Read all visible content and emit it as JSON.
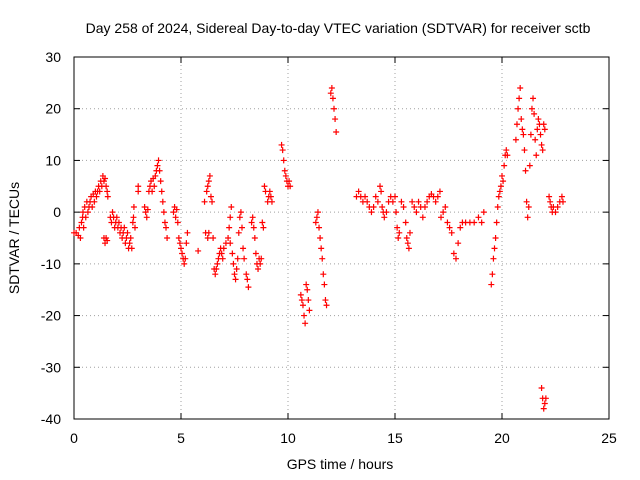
{
  "chart_data": {
    "type": "scatter",
    "title": "Day 258 of 2024, Sidereal Day-to-day VTEC variation (SDTVAR) for receiver sctb",
    "xlabel": "GPS time / hours",
    "ylabel": "SDTVAR / TECUs",
    "xlim": [
      0,
      25
    ],
    "ylim": [
      -40,
      30
    ],
    "xticks": [
      0,
      5,
      10,
      15,
      20,
      25
    ],
    "yticks": [
      30,
      20,
      10,
      0,
      -10,
      -20,
      -30,
      -40
    ],
    "xtick_labels": [
      "0",
      "5",
      "10",
      "15",
      "20",
      "25"
    ],
    "ytick_labels": [
      "30",
      "20",
      "10",
      "0",
      "-10",
      "-20",
      "-30",
      "-40"
    ],
    "grid": true,
    "marker": "+",
    "marker_color": "#ff0000",
    "series": [
      {
        "name": "SDTVAR",
        "points": [
          [
            0.0,
            -4
          ],
          [
            0.1,
            -4
          ],
          [
            0.2,
            -4.5
          ],
          [
            0.25,
            -3
          ],
          [
            0.3,
            -5
          ],
          [
            0.35,
            -2
          ],
          [
            0.4,
            -1
          ],
          [
            0.42,
            0
          ],
          [
            0.45,
            -3
          ],
          [
            0.5,
            1
          ],
          [
            0.55,
            -1
          ],
          [
            0.6,
            2
          ],
          [
            0.65,
            0
          ],
          [
            0.7,
            1
          ],
          [
            0.75,
            2
          ],
          [
            0.8,
            3
          ],
          [
            0.85,
            1
          ],
          [
            0.9,
            3.5
          ],
          [
            0.95,
            2
          ],
          [
            1.0,
            4
          ],
          [
            1.05,
            3
          ],
          [
            1.1,
            4
          ],
          [
            1.15,
            5
          ],
          [
            1.2,
            4
          ],
          [
            1.25,
            6
          ],
          [
            1.3,
            5
          ],
          [
            1.35,
            7
          ],
          [
            1.4,
            6
          ],
          [
            1.45,
            6.5
          ],
          [
            1.5,
            5
          ],
          [
            1.55,
            4
          ],
          [
            1.58,
            3
          ],
          [
            1.4,
            -5
          ],
          [
            1.45,
            -6
          ],
          [
            1.5,
            -5
          ],
          [
            1.55,
            -5.5
          ],
          [
            1.7,
            -1
          ],
          [
            1.75,
            -2
          ],
          [
            1.8,
            0
          ],
          [
            1.85,
            -1
          ],
          [
            1.9,
            -3
          ],
          [
            1.95,
            -2
          ],
          [
            2.0,
            -1
          ],
          [
            2.05,
            -3
          ],
          [
            2.1,
            -2
          ],
          [
            2.15,
            -4
          ],
          [
            2.2,
            -3
          ],
          [
            2.25,
            -5
          ],
          [
            2.3,
            -4
          ],
          [
            2.35,
            -3
          ],
          [
            2.4,
            -6
          ],
          [
            2.45,
            -5
          ],
          [
            2.5,
            -4
          ],
          [
            2.55,
            -7
          ],
          [
            2.6,
            -6
          ],
          [
            2.65,
            -5
          ],
          [
            2.7,
            -7
          ],
          [
            2.75,
            -2
          ],
          [
            2.78,
            -1
          ],
          [
            2.8,
            1
          ],
          [
            2.85,
            -3
          ],
          [
            3.0,
            4
          ],
          [
            3.0,
            5
          ],
          [
            3.3,
            1
          ],
          [
            3.35,
            0
          ],
          [
            3.4,
            -1
          ],
          [
            3.45,
            0.5
          ],
          [
            3.5,
            4
          ],
          [
            3.55,
            5
          ],
          [
            3.6,
            6
          ],
          [
            3.65,
            4
          ],
          [
            3.7,
            6.5
          ],
          [
            3.75,
            5
          ],
          [
            3.8,
            7
          ],
          [
            3.85,
            8
          ],
          [
            3.9,
            9
          ],
          [
            3.95,
            10
          ],
          [
            4.0,
            8
          ],
          [
            4.05,
            6
          ],
          [
            4.1,
            4
          ],
          [
            4.15,
            2
          ],
          [
            4.2,
            0
          ],
          [
            4.25,
            -2
          ],
          [
            4.3,
            -3
          ],
          [
            4.35,
            -5
          ],
          [
            4.65,
            0
          ],
          [
            4.7,
            1
          ],
          [
            4.75,
            -1
          ],
          [
            4.8,
            0.5
          ],
          [
            4.85,
            -2
          ],
          [
            4.9,
            -5
          ],
          [
            4.95,
            -6
          ],
          [
            5.0,
            -7
          ],
          [
            5.05,
            -8
          ],
          [
            5.1,
            -9
          ],
          [
            5.15,
            -10
          ],
          [
            5.2,
            -9
          ],
          [
            5.25,
            -6
          ],
          [
            5.3,
            -4
          ],
          [
            5.8,
            -7.5
          ],
          [
            6.1,
            2
          ],
          [
            6.2,
            4
          ],
          [
            6.25,
            5
          ],
          [
            6.3,
            6
          ],
          [
            6.35,
            7
          ],
          [
            6.4,
            3
          ],
          [
            6.45,
            2
          ],
          [
            6.15,
            -4
          ],
          [
            6.25,
            -5
          ],
          [
            6.3,
            -4
          ],
          [
            6.5,
            -5
          ],
          [
            6.55,
            -11
          ],
          [
            6.6,
            -12
          ],
          [
            6.65,
            -11
          ],
          [
            6.7,
            -10
          ],
          [
            6.75,
            -9
          ],
          [
            6.8,
            -8
          ],
          [
            6.85,
            -7
          ],
          [
            6.9,
            -8
          ],
          [
            6.95,
            -9
          ],
          [
            7.0,
            -7
          ],
          [
            7.1,
            -6
          ],
          [
            7.2,
            -5
          ],
          [
            7.25,
            -3
          ],
          [
            7.3,
            -1
          ],
          [
            7.35,
            1
          ],
          [
            7.3,
            -6
          ],
          [
            7.4,
            -8
          ],
          [
            7.45,
            -10
          ],
          [
            7.5,
            -12
          ],
          [
            7.55,
            -13
          ],
          [
            7.6,
            -11
          ],
          [
            7.65,
            -9
          ],
          [
            7.7,
            -4
          ],
          [
            7.75,
            -1
          ],
          [
            7.8,
            0
          ],
          [
            7.85,
            -3
          ],
          [
            7.9,
            -7
          ],
          [
            7.95,
            -9
          ],
          [
            8.05,
            -12
          ],
          [
            8.1,
            -13
          ],
          [
            8.15,
            -14.5
          ],
          [
            8.3,
            -2
          ],
          [
            8.35,
            -1
          ],
          [
            8.4,
            -3
          ],
          [
            8.45,
            -5
          ],
          [
            8.5,
            -8
          ],
          [
            8.55,
            -10
          ],
          [
            8.6,
            -11
          ],
          [
            8.65,
            -9
          ],
          [
            8.7,
            -10
          ],
          [
            8.75,
            -9
          ],
          [
            8.8,
            -2
          ],
          [
            8.85,
            -3
          ],
          [
            8.9,
            5
          ],
          [
            8.95,
            4
          ],
          [
            9.05,
            2
          ],
          [
            9.1,
            3
          ],
          [
            9.15,
            4
          ],
          [
            9.2,
            3
          ],
          [
            9.25,
            2
          ],
          [
            9.7,
            13
          ],
          [
            9.75,
            12
          ],
          [
            9.8,
            10
          ],
          [
            9.85,
            8
          ],
          [
            9.9,
            7
          ],
          [
            9.95,
            6
          ],
          [
            10.0,
            5
          ],
          [
            10.05,
            6
          ],
          [
            10.1,
            5
          ],
          [
            10.6,
            -16
          ],
          [
            10.65,
            -17
          ],
          [
            10.7,
            -18
          ],
          [
            10.75,
            -20
          ],
          [
            10.8,
            -21.5
          ],
          [
            10.85,
            -14
          ],
          [
            10.9,
            -15
          ],
          [
            10.95,
            -17
          ],
          [
            11.0,
            -19
          ],
          [
            11.3,
            -2
          ],
          [
            11.35,
            -1
          ],
          [
            11.4,
            0
          ],
          [
            11.45,
            -3
          ],
          [
            11.5,
            -5
          ],
          [
            11.55,
            -7
          ],
          [
            11.6,
            -9
          ],
          [
            11.65,
            -12
          ],
          [
            11.7,
            -14
          ],
          [
            11.75,
            -17
          ],
          [
            11.8,
            -18
          ],
          [
            12.0,
            23
          ],
          [
            12.05,
            24
          ],
          [
            12.1,
            22
          ],
          [
            12.15,
            20
          ],
          [
            12.2,
            18
          ],
          [
            12.25,
            15.5
          ],
          [
            13.2,
            3
          ],
          [
            13.3,
            4
          ],
          [
            13.4,
            3
          ],
          [
            13.5,
            2
          ],
          [
            13.6,
            3
          ],
          [
            13.7,
            2
          ],
          [
            13.8,
            1
          ],
          [
            13.9,
            0
          ],
          [
            14.0,
            1
          ],
          [
            14.1,
            3
          ],
          [
            14.2,
            2
          ],
          [
            14.3,
            5
          ],
          [
            14.35,
            4
          ],
          [
            14.4,
            1
          ],
          [
            14.45,
            0
          ],
          [
            14.5,
            -1
          ],
          [
            14.6,
            0
          ],
          [
            14.7,
            2
          ],
          [
            14.8,
            3
          ],
          [
            14.9,
            2
          ],
          [
            15.0,
            3
          ],
          [
            15.05,
            0
          ],
          [
            15.1,
            -3
          ],
          [
            15.15,
            -5
          ],
          [
            15.2,
            -4
          ],
          [
            15.3,
            2
          ],
          [
            15.4,
            1
          ],
          [
            15.5,
            -2
          ],
          [
            15.55,
            -5
          ],
          [
            15.6,
            -6
          ],
          [
            15.65,
            -7
          ],
          [
            15.7,
            -4
          ],
          [
            15.8,
            2
          ],
          [
            15.9,
            1
          ],
          [
            16.0,
            0
          ],
          [
            16.1,
            2
          ],
          [
            16.2,
            1
          ],
          [
            16.3,
            -1
          ],
          [
            16.4,
            1
          ],
          [
            16.5,
            2
          ],
          [
            16.6,
            3
          ],
          [
            16.7,
            3.5
          ],
          [
            16.8,
            3
          ],
          [
            16.9,
            2
          ],
          [
            17.0,
            3
          ],
          [
            17.1,
            4
          ],
          [
            17.15,
            -1
          ],
          [
            17.25,
            0
          ],
          [
            17.35,
            1
          ],
          [
            17.45,
            -2
          ],
          [
            17.55,
            -3
          ],
          [
            17.65,
            -4
          ],
          [
            17.75,
            -8
          ],
          [
            17.85,
            -9
          ],
          [
            17.95,
            -6
          ],
          [
            18.05,
            -3
          ],
          [
            18.15,
            -2
          ],
          [
            18.3,
            -2
          ],
          [
            18.5,
            -2
          ],
          [
            18.7,
            -2
          ],
          [
            18.9,
            -1
          ],
          [
            19.05,
            -2
          ],
          [
            19.15,
            0
          ],
          [
            19.5,
            -14
          ],
          [
            19.55,
            -12
          ],
          [
            19.6,
            -9
          ],
          [
            19.65,
            -7
          ],
          [
            19.7,
            -5
          ],
          [
            19.75,
            -2
          ],
          [
            19.8,
            1
          ],
          [
            19.85,
            3
          ],
          [
            19.9,
            4
          ],
          [
            19.95,
            5
          ],
          [
            20.0,
            7
          ],
          [
            20.05,
            6
          ],
          [
            20.1,
            9
          ],
          [
            20.15,
            11
          ],
          [
            20.2,
            12
          ],
          [
            20.25,
            11
          ],
          [
            20.65,
            14
          ],
          [
            20.7,
            17
          ],
          [
            20.75,
            20
          ],
          [
            20.8,
            22
          ],
          [
            20.85,
            24
          ],
          [
            20.9,
            18
          ],
          [
            20.95,
            16
          ],
          [
            21.0,
            15
          ],
          [
            21.05,
            12
          ],
          [
            21.1,
            8
          ],
          [
            21.15,
            2
          ],
          [
            21.2,
            -1
          ],
          [
            21.25,
            1
          ],
          [
            21.3,
            9
          ],
          [
            21.35,
            15
          ],
          [
            21.4,
            20
          ],
          [
            21.45,
            22
          ],
          [
            21.5,
            19
          ],
          [
            21.55,
            14
          ],
          [
            21.6,
            11
          ],
          [
            21.65,
            16
          ],
          [
            21.7,
            18
          ],
          [
            21.75,
            17
          ],
          [
            21.8,
            15
          ],
          [
            21.85,
            13
          ],
          [
            21.9,
            12
          ],
          [
            21.95,
            17
          ],
          [
            22.0,
            16
          ],
          [
            21.85,
            -34
          ],
          [
            21.9,
            -36
          ],
          [
            21.95,
            -38
          ],
          [
            22.0,
            -37
          ],
          [
            22.05,
            -36
          ],
          [
            22.2,
            3
          ],
          [
            22.25,
            2
          ],
          [
            22.3,
            1
          ],
          [
            22.35,
            0
          ],
          [
            22.4,
            1
          ],
          [
            22.5,
            0
          ],
          [
            22.6,
            1
          ],
          [
            22.7,
            2
          ],
          [
            22.8,
            3
          ],
          [
            22.85,
            2
          ]
        ]
      }
    ]
  }
}
